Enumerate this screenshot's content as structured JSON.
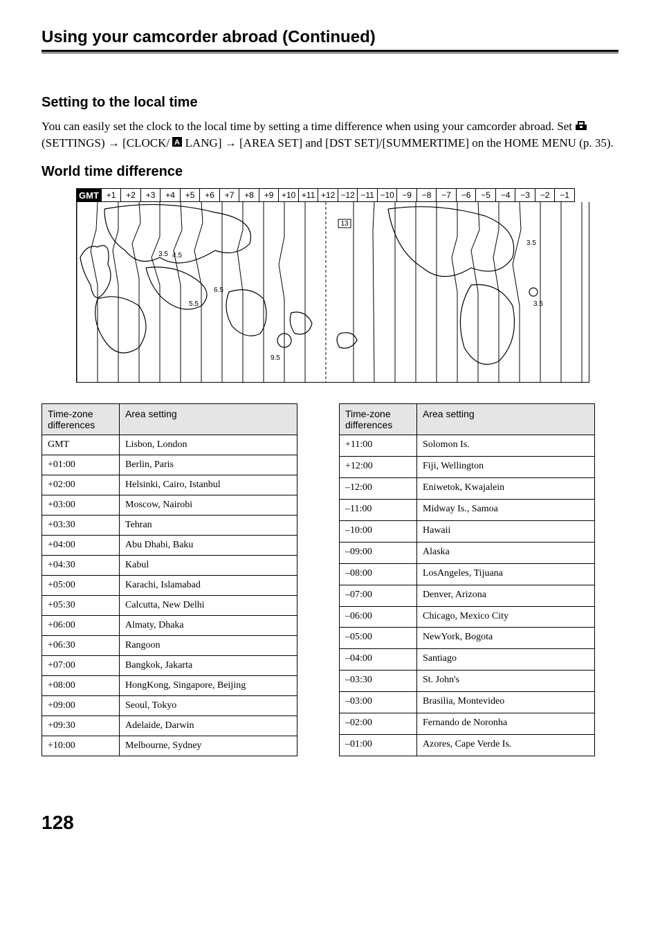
{
  "page": {
    "continued_title": "Using your camcorder abroad (Continued)",
    "page_number": "128"
  },
  "section1": {
    "heading": "Setting to the local time",
    "text_before": "You can easily set the clock to the local time by setting a time difference when using your camcorder abroad. Set ",
    "settings_label": " (SETTINGS) ",
    "arrow1": "→",
    "clock_lang": " [CLOCK/",
    "lang_suffix": "LANG] ",
    "arrow2": "→",
    "area_set": " [AREA SET] and [DST SET]/[SUMMERTIME] on the HOME MENU (p. 35)."
  },
  "section2": {
    "heading": "World time difference"
  },
  "map": {
    "gmt_label": "GMT",
    "offsets": [
      "+1",
      "+2",
      "+3",
      "+4",
      "+5",
      "+6",
      "+7",
      "+8",
      "+9",
      "+10",
      "+11",
      "+12",
      "−12",
      "−11",
      "−10",
      "−9",
      "−8",
      "−7",
      "−6",
      "−5",
      "−4",
      "−3",
      "−2",
      "−1"
    ],
    "float_labels": [
      "13",
      "3.5",
      "4.5",
      "5.5",
      "6.5",
      "9.5",
      "3.5",
      "3.5"
    ]
  },
  "table_left": {
    "head_tz": "Time-zone differences",
    "head_area": "Area setting",
    "rows": [
      [
        "GMT",
        "Lisbon, London"
      ],
      [
        "+01:00",
        "Berlin, Paris"
      ],
      [
        "+02:00",
        "Helsinki, Cairo, Istanbul"
      ],
      [
        "+03:00",
        "Moscow, Nairobi"
      ],
      [
        "+03:30",
        "Tehran"
      ],
      [
        "+04:00",
        "Abu Dhabi, Baku"
      ],
      [
        "+04:30",
        "Kabul"
      ],
      [
        "+05:00",
        "Karachi, Islamabad"
      ],
      [
        "+05:30",
        "Calcutta, New Delhi"
      ],
      [
        "+06:00",
        "Almaty, Dhaka"
      ],
      [
        "+06:30",
        "Rangoon"
      ],
      [
        "+07:00",
        "Bangkok, Jakarta"
      ],
      [
        "+08:00",
        "HongKong, Singapore, Beijing"
      ],
      [
        "+09:00",
        "Seoul, Tokyo"
      ],
      [
        "+09:30",
        "Adelaide, Darwin"
      ],
      [
        "+10:00",
        "Melbourne, Sydney"
      ]
    ]
  },
  "table_right": {
    "head_tz": "Time-zone differences",
    "head_area": "Area setting",
    "rows": [
      [
        "+11:00",
        "Solomon Is."
      ],
      [
        "+12:00",
        "Fiji, Wellington"
      ],
      [
        "–12:00",
        "Eniwetok, Kwajalein"
      ],
      [
        "–11:00",
        "Midway Is., Samoa"
      ],
      [
        "–10:00",
        "Hawaii"
      ],
      [
        "–09:00",
        "Alaska"
      ],
      [
        "–08:00",
        "LosAngeles, Tijuana"
      ],
      [
        "–07:00",
        "Denver, Arizona"
      ],
      [
        "–06:00",
        "Chicago, Mexico City"
      ],
      [
        "–05:00",
        "NewYork, Bogota"
      ],
      [
        "–04:00",
        "Santiago"
      ],
      [
        "–03:30",
        "St. John's"
      ],
      [
        "–03:00",
        "Brasilia, Montevideo"
      ],
      [
        "–02:00",
        "Fernando de Noronha"
      ],
      [
        "–01:00",
        "Azores, Cape Verde Is."
      ]
    ]
  }
}
